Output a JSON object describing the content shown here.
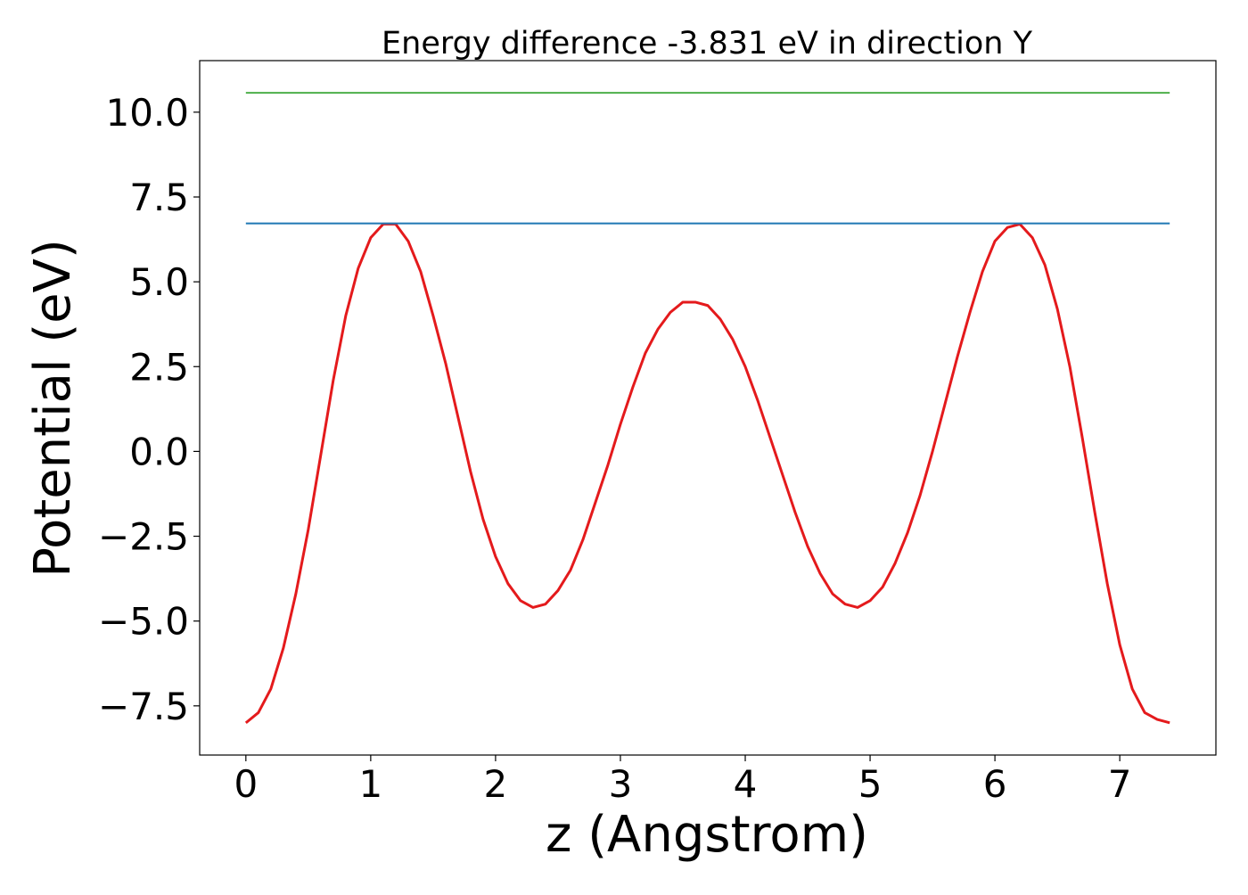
{
  "chart_data": {
    "type": "line",
    "title": "Energy difference -3.831 eV in direction Y",
    "xlabel": "z (Angstrom)",
    "ylabel": "Potential (eV)",
    "xlim": [
      -0.37,
      7.77
    ],
    "ylim": [
      -8.95,
      11.52
    ],
    "xticks": [
      0,
      1,
      2,
      3,
      4,
      5,
      6,
      7
    ],
    "xtick_labels": [
      "0",
      "1",
      "2",
      "3",
      "4",
      "5",
      "6",
      "7"
    ],
    "yticks": [
      -7.5,
      -5.0,
      -2.5,
      0.0,
      2.5,
      5.0,
      7.5,
      10.0
    ],
    "ytick_labels": [
      "−7.5",
      "−5.0",
      "−2.5",
      "0.0",
      "2.5",
      "5.0",
      "7.5",
      "10.0"
    ],
    "grid": false,
    "legend": "none",
    "series": [
      {
        "kind": "curve",
        "color": "#e41a1c",
        "x": [
          0.0,
          0.1,
          0.2,
          0.3,
          0.4,
          0.5,
          0.6,
          0.7,
          0.8,
          0.9,
          1.0,
          1.1,
          1.2,
          1.3,
          1.4,
          1.5,
          1.6,
          1.7,
          1.8,
          1.9,
          2.0,
          2.1,
          2.2,
          2.3,
          2.4,
          2.5,
          2.6,
          2.7,
          2.8,
          2.9,
          3.0,
          3.1,
          3.2,
          3.3,
          3.4,
          3.5,
          3.6,
          3.7,
          3.8,
          3.9,
          4.0,
          4.1,
          4.2,
          4.3,
          4.4,
          4.5,
          4.6,
          4.7,
          4.8,
          4.9,
          5.0,
          5.1,
          5.2,
          5.3,
          5.4,
          5.5,
          5.6,
          5.7,
          5.8,
          5.9,
          6.0,
          6.1,
          6.2,
          6.3,
          6.4,
          6.5,
          6.6,
          6.7,
          6.8,
          6.9,
          7.0,
          7.1,
          7.2,
          7.3,
          7.4
        ],
        "y": [
          -8.0,
          -7.7,
          -7.0,
          -5.8,
          -4.2,
          -2.3,
          -0.1,
          2.1,
          4.0,
          5.4,
          6.3,
          6.7,
          6.7,
          6.2,
          5.3,
          4.0,
          2.6,
          1.0,
          -0.6,
          -2.0,
          -3.1,
          -3.9,
          -4.4,
          -4.6,
          -4.5,
          -4.1,
          -3.5,
          -2.6,
          -1.5,
          -0.4,
          0.8,
          1.9,
          2.9,
          3.6,
          4.1,
          4.4,
          4.4,
          4.3,
          3.9,
          3.3,
          2.5,
          1.5,
          0.4,
          -0.7,
          -1.8,
          -2.8,
          -3.6,
          -4.2,
          -4.5,
          -4.6,
          -4.4,
          -4.0,
          -3.3,
          -2.4,
          -1.3,
          0.0,
          1.4,
          2.8,
          4.1,
          5.3,
          6.2,
          6.6,
          6.7,
          6.3,
          5.5,
          4.2,
          2.5,
          0.4,
          -1.8,
          -3.9,
          -5.7,
          -7.0,
          -7.7,
          -7.9,
          -8.0
        ]
      },
      {
        "kind": "hline",
        "color": "#1f77b4",
        "x": [
          0.0,
          7.4
        ],
        "y": [
          6.72,
          6.72
        ]
      },
      {
        "kind": "hline",
        "color": "#4daf4a",
        "x": [
          0.0,
          7.4
        ],
        "y": [
          10.57,
          10.57
        ]
      }
    ]
  }
}
